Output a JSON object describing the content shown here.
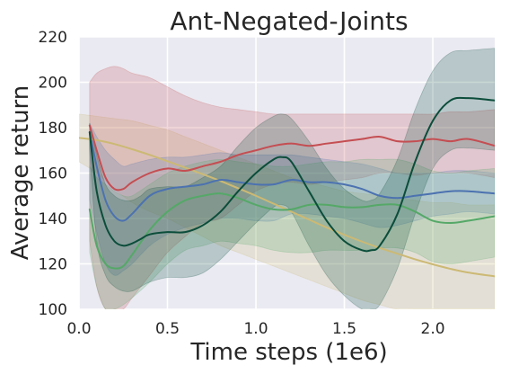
{
  "chart_data": {
    "type": "line",
    "title": "Ant-Negated-Joints",
    "xlabel": "Time steps (1e6)",
    "ylabel": "Average return",
    "xlim": [
      0.0,
      2.35
    ],
    "ylim": [
      100,
      220
    ],
    "xticks": [
      0.0,
      0.5,
      1.0,
      1.5,
      2.0
    ],
    "xtick_labels": [
      "0.0",
      "0.5",
      "1.0",
      "1.5",
      "2.0"
    ],
    "yticks": [
      100,
      120,
      140,
      160,
      180,
      200,
      220
    ],
    "ytick_labels": [
      "100",
      "120",
      "140",
      "160",
      "180",
      "200",
      "220"
    ],
    "grid": true,
    "background": "#eaeaf2",
    "series": [
      {
        "color": "#ccb974",
        "x": [
          0.0,
          0.1,
          0.2,
          0.3,
          0.4,
          0.5,
          0.6,
          0.7,
          0.8,
          0.9,
          1.0,
          1.1,
          1.2,
          1.3,
          1.4,
          1.5,
          1.6,
          1.7,
          1.8,
          1.9,
          2.0,
          2.1,
          2.2,
          2.35
        ],
        "mean": [
          175.5,
          174.5,
          172.8,
          170.5,
          168.0,
          165.2,
          162.4,
          159.5,
          156.5,
          153.3,
          150.0,
          146.5,
          143.0,
          139.5,
          136.0,
          132.8,
          129.8,
          127.0,
          124.5,
          122.0,
          119.8,
          117.8,
          116.2,
          114.5
        ],
        "lower": [
          165,
          160,
          153,
          147,
          143,
          140,
          136,
          132,
          128,
          125,
          122,
          119,
          116,
          113,
          110,
          107,
          104,
          102,
          100,
          100,
          100,
          100,
          100,
          100
        ],
        "upper": [
          186,
          185,
          184,
          183,
          181,
          179,
          176,
          173,
          170,
          167,
          164,
          161,
          158,
          156,
          154,
          152,
          151,
          150,
          149,
          148,
          147,
          147,
          146,
          146
        ]
      },
      {
        "color": "#c44e52",
        "x": [
          0.06,
          0.1,
          0.15,
          0.2,
          0.25,
          0.3,
          0.4,
          0.5,
          0.6,
          0.7,
          0.8,
          0.9,
          1.0,
          1.1,
          1.2,
          1.3,
          1.4,
          1.5,
          1.6,
          1.7,
          1.8,
          1.9,
          2.0,
          2.1,
          2.2,
          2.35
        ],
        "mean": [
          181,
          170,
          158,
          153,
          153,
          156,
          160,
          162,
          161,
          163,
          165,
          168,
          170,
          172,
          173,
          172,
          173,
          174,
          175,
          176,
          174,
          174,
          175,
          174,
          175,
          172
        ],
        "lower": [
          130,
          110,
          100,
          100,
          100,
          105,
          115,
          125,
          132,
          138,
          140,
          146,
          152,
          155,
          156,
          155,
          156,
          157,
          158,
          160,
          160,
          159,
          160,
          160,
          160,
          158
        ],
        "upper": [
          200,
          204,
          206,
          207,
          206,
          204,
          202,
          198,
          194,
          191,
          189,
          188,
          187,
          186,
          186,
          186,
          186,
          186,
          186,
          186,
          186,
          186,
          186,
          187,
          187,
          188
        ]
      },
      {
        "color": "#4c72b0",
        "x": [
          0.06,
          0.1,
          0.15,
          0.2,
          0.25,
          0.3,
          0.4,
          0.5,
          0.6,
          0.7,
          0.8,
          0.9,
          1.0,
          1.1,
          1.2,
          1.3,
          1.4,
          1.5,
          1.6,
          1.7,
          1.8,
          1.9,
          2.0,
          2.1,
          2.2,
          2.35
        ],
        "mean": [
          178,
          163,
          148,
          141,
          139,
          142,
          150,
          153,
          154,
          155,
          157,
          156,
          155,
          155,
          157,
          156,
          156,
          155,
          153,
          150,
          149,
          150,
          151,
          152,
          152,
          151
        ],
        "lower": [
          148,
          134,
          120,
          115,
          117,
          120,
          128,
          133,
          136,
          138,
          140,
          140,
          139,
          139,
          142,
          142,
          141,
          140,
          138,
          136,
          137,
          139,
          141,
          142,
          143,
          142
        ],
        "upper": [
          182,
          176,
          170,
          166,
          163,
          164,
          166,
          167,
          167,
          168,
          169,
          168,
          168,
          168,
          168,
          167,
          166,
          165,
          164,
          162,
          160,
          160,
          160,
          161,
          161,
          160
        ]
      },
      {
        "color": "#55a868",
        "x": [
          0.06,
          0.1,
          0.15,
          0.2,
          0.25,
          0.3,
          0.4,
          0.5,
          0.6,
          0.7,
          0.8,
          0.9,
          1.0,
          1.1,
          1.2,
          1.3,
          1.4,
          1.5,
          1.6,
          1.7,
          1.8,
          1.9,
          2.0,
          2.1,
          2.2,
          2.35
        ],
        "mean": [
          144,
          128,
          120,
          118,
          119,
          124,
          135,
          143,
          148,
          150,
          151,
          149,
          146,
          144,
          144,
          146,
          146,
          145,
          145,
          146,
          146,
          143,
          139,
          138,
          139,
          141
        ],
        "lower": [
          125,
          110,
          100,
          100,
          102,
          105,
          112,
          120,
          126,
          128,
          130,
          129,
          128,
          126,
          125,
          125,
          126,
          126,
          126,
          127,
          127,
          125,
          121,
          120,
          121,
          123
        ],
        "upper": [
          163,
          158,
          155,
          152,
          150,
          150,
          155,
          160,
          163,
          165,
          166,
          165,
          164,
          163,
          163,
          164,
          165,
          165,
          166,
          166,
          166,
          164,
          161,
          160,
          161,
          162
        ]
      },
      {
        "color": "#0b4d3a",
        "x": [
          0.06,
          0.1,
          0.15,
          0.2,
          0.25,
          0.3,
          0.35,
          0.4,
          0.5,
          0.6,
          0.7,
          0.8,
          0.9,
          1.0,
          1.1,
          1.15,
          1.2,
          1.3,
          1.4,
          1.5,
          1.6,
          1.65,
          1.7,
          1.8,
          1.9,
          2.0,
          2.1,
          2.2,
          2.35
        ],
        "mean": [
          178,
          152,
          137,
          130,
          128,
          129,
          131,
          133,
          134,
          134,
          137,
          143,
          152,
          160,
          166,
          167,
          165,
          152,
          139,
          130,
          126,
          126,
          128,
          142,
          165,
          183,
          192,
          193,
          192
        ],
        "lower": [
          170,
          130,
          115,
          110,
          108,
          108,
          110,
          112,
          114,
          114,
          116,
          122,
          130,
          138,
          145,
          146,
          143,
          128,
          115,
          106,
          100,
          100,
          102,
          118,
          142,
          162,
          170,
          171,
          170
        ],
        "upper": [
          182,
          168,
          155,
          150,
          148,
          148,
          150,
          153,
          154,
          154,
          158,
          163,
          172,
          180,
          185,
          186,
          184,
          174,
          162,
          153,
          148,
          148,
          151,
          166,
          188,
          205,
          213,
          214,
          215
        ]
      }
    ]
  },
  "colors": {
    "title_text": "#262626",
    "tick_text": "#262626",
    "grid": "#ffffff"
  }
}
